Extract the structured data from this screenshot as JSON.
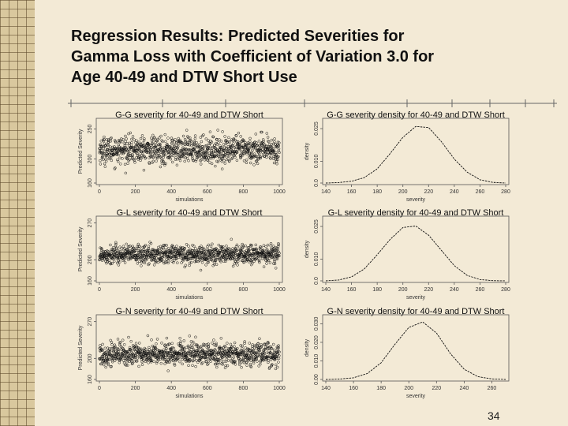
{
  "slide": {
    "title_lines": [
      "Regression Results: Predicted Severities for",
      "Gamma Loss with Coefficient of Variation 3.0 for",
      "Age 40-49 and DTW Short Use"
    ],
    "page_number": "34"
  },
  "chart_data": [
    {
      "type": "scatter",
      "title": "G-G severity for 40-49 and DTW Short",
      "xlabel": "simulations",
      "ylabel": "Predicted Severity",
      "xlim": [
        0,
        1000
      ],
      "ylim": [
        160,
        265
      ],
      "xticks": [
        0,
        200,
        400,
        600,
        800,
        1000
      ],
      "yticks": [
        160,
        200,
        250
      ],
      "series_summary": {
        "n_points": 1000,
        "center": 215,
        "spread_sd": 11
      }
    },
    {
      "type": "line",
      "title": "G-G severity density for 40-49 and DTW Short",
      "xlabel": "severity",
      "ylabel": "density",
      "xlim": [
        140,
        280
      ],
      "ylim": [
        0,
        0.029
      ],
      "xticks": [
        140,
        160,
        180,
        200,
        220,
        240,
        260,
        280
      ],
      "yticks": [
        0.0,
        0.01,
        0.025
      ],
      "ytick_labels": [
        "0.0",
        "0.010",
        "0.025"
      ],
      "curve": {
        "x": [
          140,
          150,
          160,
          170,
          180,
          190,
          200,
          210,
          220,
          230,
          240,
          250,
          260,
          270,
          280
        ],
        "y": [
          0.0,
          0.0002,
          0.0008,
          0.0025,
          0.0065,
          0.0135,
          0.021,
          0.026,
          0.0255,
          0.019,
          0.011,
          0.005,
          0.0015,
          0.0003,
          0.0
        ]
      }
    },
    {
      "type": "scatter",
      "title": "G-L severity for 40-49 and DTW Short",
      "xlabel": "simulations",
      "ylabel": "Predicted Severity",
      "xlim": [
        0,
        1000
      ],
      "ylim": [
        160,
        280
      ],
      "xticks": [
        0,
        200,
        400,
        600,
        800,
        1000
      ],
      "yticks": [
        160,
        200,
        270
      ],
      "series_summary": {
        "n_points": 1000,
        "center": 210,
        "spread_sd": 9
      }
    },
    {
      "type": "line",
      "title": "G-L severity density for 40-49 and DTW Short",
      "xlabel": "severity",
      "ylabel": "density",
      "xlim": [
        140,
        280
      ],
      "ylim": [
        0,
        0.029
      ],
      "xticks": [
        140,
        160,
        180,
        200,
        220,
        240,
        260,
        280
      ],
      "yticks": [
        0.0,
        0.01,
        0.025
      ],
      "ytick_labels": [
        "0.0",
        "0.010",
        "0.025"
      ],
      "curve": {
        "x": [
          140,
          150,
          160,
          170,
          180,
          190,
          200,
          210,
          220,
          230,
          240,
          250,
          260,
          270,
          280
        ],
        "y": [
          0.0,
          0.0004,
          0.0018,
          0.0055,
          0.012,
          0.019,
          0.0245,
          0.0252,
          0.021,
          0.014,
          0.007,
          0.0025,
          0.0006,
          0.0001,
          0.0
        ]
      }
    },
    {
      "type": "scatter",
      "title": "G-N severity for 40-49 and DTW Short",
      "xlabel": "simulations",
      "ylabel": "Predicted Severity",
      "xlim": [
        0,
        1000
      ],
      "ylim": [
        160,
        280
      ],
      "xticks": [
        0,
        200,
        400,
        600,
        800,
        1000
      ],
      "yticks": [
        160,
        200,
        270
      ],
      "series_summary": {
        "n_points": 1000,
        "center": 208,
        "spread_sd": 11
      }
    },
    {
      "type": "line",
      "title": "G-N severity density for 40-49 and DTW Short",
      "xlabel": "severity",
      "ylabel": "density",
      "xlim": [
        140,
        270
      ],
      "ylim": [
        0,
        0.034
      ],
      "xticks": [
        140,
        160,
        180,
        200,
        220,
        240,
        260
      ],
      "yticks": [
        0.0,
        0.01,
        0.02,
        0.03
      ],
      "ytick_labels": [
        "0.00",
        "0.010",
        "0.020",
        "0.030"
      ],
      "curve": {
        "x": [
          140,
          150,
          160,
          170,
          180,
          190,
          200,
          210,
          220,
          230,
          240,
          250,
          260,
          270
        ],
        "y": [
          0.0,
          0.0002,
          0.0009,
          0.0032,
          0.009,
          0.019,
          0.028,
          0.031,
          0.025,
          0.014,
          0.0055,
          0.0015,
          0.0003,
          0.0
        ]
      }
    }
  ]
}
